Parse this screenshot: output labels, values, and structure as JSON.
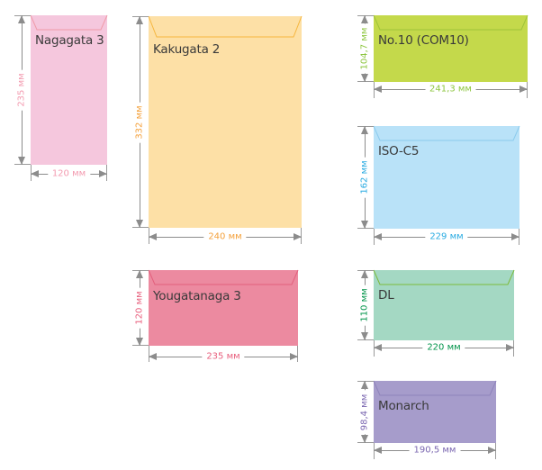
{
  "envelopes": [
    {
      "name": "Nagagata 3",
      "height": "235 мм",
      "width": "120 мм",
      "fill": "#f5c7dd",
      "flap_color": "#f09aa8",
      "label_color": "#f39bb0"
    },
    {
      "name": "Kakugata 2",
      "height": "332 мм",
      "width": "240 мм",
      "fill": "#fde0a6",
      "flap_color": "#f6b63e",
      "label_color": "#f4a13c"
    },
    {
      "name": "Yougatanaga 3",
      "height": "120 мм",
      "width": "235 мм",
      "fill": "#ec8aa0",
      "flap_color": "#e2607d",
      "label_color": "#e8607e"
    },
    {
      "name": "No.10 (COM10)",
      "height": "104,7 мм",
      "width": "241,3 мм",
      "fill": "#c4d94b",
      "flap_color": "#9ec43a",
      "label_color": "#8dc63f"
    },
    {
      "name": "ISO-C5",
      "height": "162 мм",
      "width": "229 мм",
      "fill": "#b9e2f8",
      "flap_color": "#8ccbed",
      "label_color": "#29abe2"
    },
    {
      "name": "DL",
      "height": "110 мм",
      "width": "220 мм",
      "fill": "#a4d8c3",
      "flap_color": "#7dbb3c",
      "label_color": "#00944a"
    },
    {
      "name": "Monarch",
      "height": "98,4 мм",
      "width": "190,5 мм",
      "fill": "#a69ccb",
      "flap_color": "#8f84bb",
      "label_color": "#7a66b0"
    }
  ]
}
